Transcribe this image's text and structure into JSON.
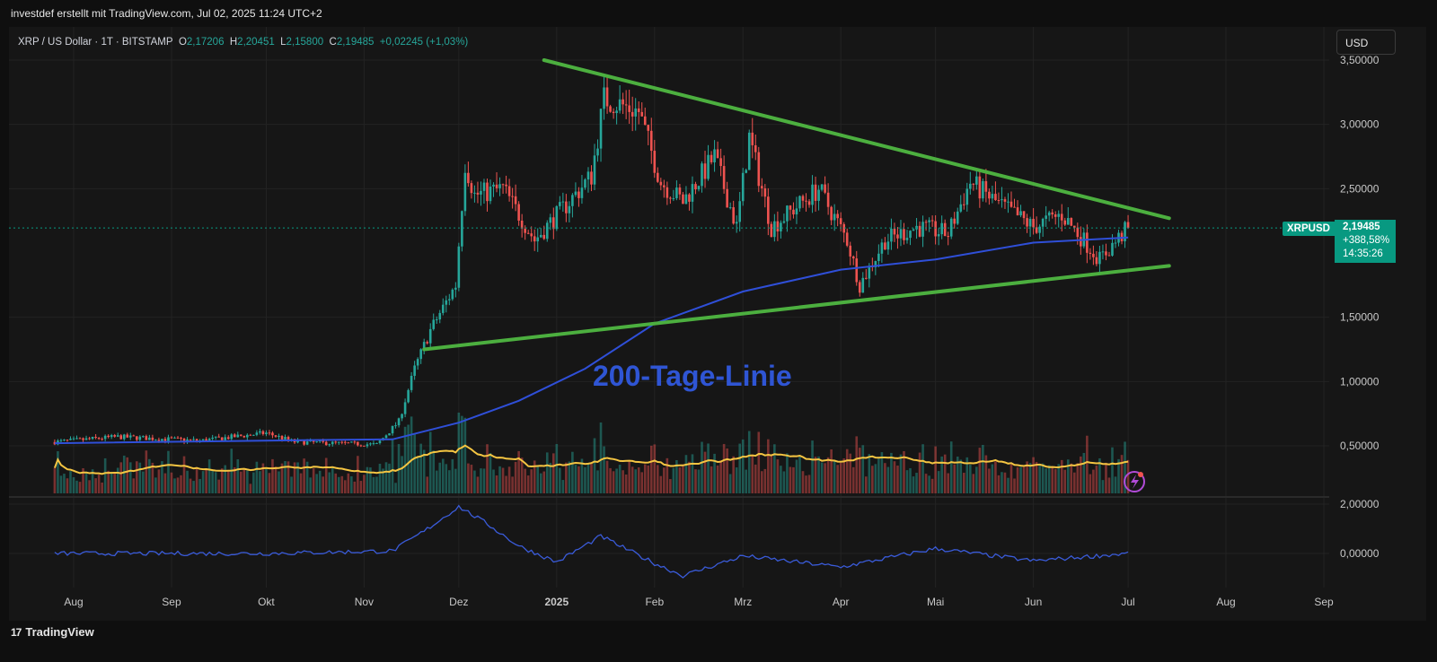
{
  "header": {
    "credit": "investdef erstellt mit TradingView.com, Jul 02, 2025 11:24 UTC+2"
  },
  "legend": {
    "symbol": "XRP / US Dollar · 1T · BITSTAMP",
    "o_label": "O",
    "o_value": "2,17206",
    "h_label": "H",
    "h_value": "2,20451",
    "l_label": "L",
    "l_value": "2,15800",
    "c_label": "C",
    "c_value": "2,19485",
    "change": "+0,02245 (+1,03%)"
  },
  "toolbar": {
    "currency_label": "USD"
  },
  "price_tag": {
    "symbol": "XRPUSD",
    "price": "2,19485",
    "change_pct": "+388,58%",
    "countdown": "14:35:26"
  },
  "footer": {
    "brand": "TradingView",
    "brand_logo": "17"
  },
  "colors": {
    "background": "#161616",
    "up": "#26a69a",
    "down": "#ef5350",
    "trendline": "#4caf3f",
    "ma200": "#2f4fd8",
    "volume_ma": "#f5c542",
    "annotation": "#2f55d4",
    "oscillator": "#3a5bd9"
  },
  "chart_data": {
    "type": "candlestick",
    "symbol": "XRPUSD",
    "interval": "1T",
    "x_axis_labels": [
      "Aug",
      "Sep",
      "Okt",
      "Nov",
      "Dez",
      "2025",
      "Feb",
      "Mrz",
      "Apr",
      "Mai",
      "Jun",
      "Jul",
      "Aug",
      "Sep"
    ],
    "x_axis_dates": [
      "2024-08-01",
      "2024-09-01",
      "2024-10-01",
      "2024-11-01",
      "2024-12-01",
      "2025-01-01",
      "2025-02-01",
      "2025-03-01",
      "2025-04-01",
      "2025-05-01",
      "2025-06-01",
      "2025-07-01",
      "2025-08-01",
      "2025-09-01"
    ],
    "y_axis_ticks": [
      "3,50000",
      "3,00000",
      "2,50000",
      "1,50000",
      "1,00000",
      "0,50000"
    ],
    "y_axis_tick_values": [
      3.5,
      3.0,
      2.5,
      1.5,
      1.0,
      0.5
    ],
    "y_range": [
      0.25,
      3.5
    ],
    "price_path": [
      {
        "date": "2024-07-26",
        "close": 0.53
      },
      {
        "date": "2024-08-15",
        "close": 0.57
      },
      {
        "date": "2024-09-10",
        "close": 0.54
      },
      {
        "date": "2024-10-01",
        "close": 0.6
      },
      {
        "date": "2024-10-10",
        "close": 0.53
      },
      {
        "date": "2024-11-05",
        "close": 0.51
      },
      {
        "date": "2024-11-12",
        "close": 0.69
      },
      {
        "date": "2024-11-17",
        "close": 1.1
      },
      {
        "date": "2024-11-22",
        "close": 1.4
      },
      {
        "date": "2024-11-30",
        "close": 1.75
      },
      {
        "date": "2024-12-03",
        "close": 2.7
      },
      {
        "date": "2024-12-06",
        "close": 2.45
      },
      {
        "date": "2024-12-15",
        "close": 2.5
      },
      {
        "date": "2024-12-25",
        "close": 2.1
      },
      {
        "date": "2025-01-05",
        "close": 2.4
      },
      {
        "date": "2025-01-12",
        "close": 2.6
      },
      {
        "date": "2025-01-16",
        "close": 3.2
      },
      {
        "date": "2025-01-27",
        "close": 3.1
      },
      {
        "date": "2025-02-03",
        "close": 2.55
      },
      {
        "date": "2025-02-10",
        "close": 2.4
      },
      {
        "date": "2025-02-20",
        "close": 2.75
      },
      {
        "date": "2025-02-27",
        "close": 2.2
      },
      {
        "date": "2025-03-03",
        "close": 2.9
      },
      {
        "date": "2025-03-10",
        "close": 2.2
      },
      {
        "date": "2025-03-20",
        "close": 2.4
      },
      {
        "date": "2025-03-25",
        "close": 2.5
      },
      {
        "date": "2025-04-03",
        "close": 2.1
      },
      {
        "date": "2025-04-07",
        "close": 1.75
      },
      {
        "date": "2025-04-15",
        "close": 2.1
      },
      {
        "date": "2025-04-25",
        "close": 2.2
      },
      {
        "date": "2025-05-05",
        "close": 2.15
      },
      {
        "date": "2025-05-12",
        "close": 2.55
      },
      {
        "date": "2025-05-20",
        "close": 2.4
      },
      {
        "date": "2025-06-01",
        "close": 2.2
      },
      {
        "date": "2025-06-10",
        "close": 2.3
      },
      {
        "date": "2025-06-22",
        "close": 1.95
      },
      {
        "date": "2025-07-01",
        "close": 2.19485
      }
    ],
    "trendlines": [
      {
        "role": "upper",
        "from": {
          "date": "2024-12-28",
          "price": 3.5
        },
        "to": {
          "date": "2025-07-14",
          "price": 2.27
        }
      },
      {
        "role": "lower",
        "from": {
          "date": "2024-11-20",
          "price": 1.25
        },
        "to": {
          "date": "2025-07-14",
          "price": 1.9
        }
      }
    ],
    "ma200": [
      {
        "date": "2024-07-26",
        "value": 0.52
      },
      {
        "date": "2024-10-15",
        "value": 0.545
      },
      {
        "date": "2024-11-10",
        "value": 0.55
      },
      {
        "date": "2024-12-01",
        "value": 0.68
      },
      {
        "date": "2024-12-20",
        "value": 0.85
      },
      {
        "date": "2025-01-10",
        "value": 1.1
      },
      {
        "date": "2025-02-01",
        "value": 1.45
      },
      {
        "date": "2025-03-01",
        "value": 1.7
      },
      {
        "date": "2025-04-01",
        "value": 1.87
      },
      {
        "date": "2025-05-01",
        "value": 1.95
      },
      {
        "date": "2025-06-01",
        "value": 2.08
      },
      {
        "date": "2025-07-01",
        "value": 2.12
      }
    ],
    "annotation": "200-Tage-Linie",
    "oscillator": {
      "y_axis_ticks": [
        "2,00000",
        "0,00000"
      ],
      "y_axis_tick_values": [
        2.0,
        0.0
      ],
      "y_range": [
        -1.0,
        2.2
      ],
      "points": [
        {
          "date": "2024-07-26",
          "value": 0.0
        },
        {
          "date": "2024-10-01",
          "value": 0.0
        },
        {
          "date": "2024-11-10",
          "value": 0.1
        },
        {
          "date": "2024-11-20",
          "value": 0.9
        },
        {
          "date": "2024-12-01",
          "value": 1.9
        },
        {
          "date": "2024-12-10",
          "value": 1.2
        },
        {
          "date": "2024-12-20",
          "value": 0.3
        },
        {
          "date": "2025-01-01",
          "value": -0.35
        },
        {
          "date": "2025-01-15",
          "value": 0.7
        },
        {
          "date": "2025-02-01",
          "value": -0.4
        },
        {
          "date": "2025-02-10",
          "value": -0.9
        },
        {
          "date": "2025-03-01",
          "value": -0.1
        },
        {
          "date": "2025-04-01",
          "value": -0.55
        },
        {
          "date": "2025-05-01",
          "value": 0.2
        },
        {
          "date": "2025-06-01",
          "value": -0.3
        },
        {
          "date": "2025-07-01",
          "value": 0.0
        }
      ]
    }
  }
}
